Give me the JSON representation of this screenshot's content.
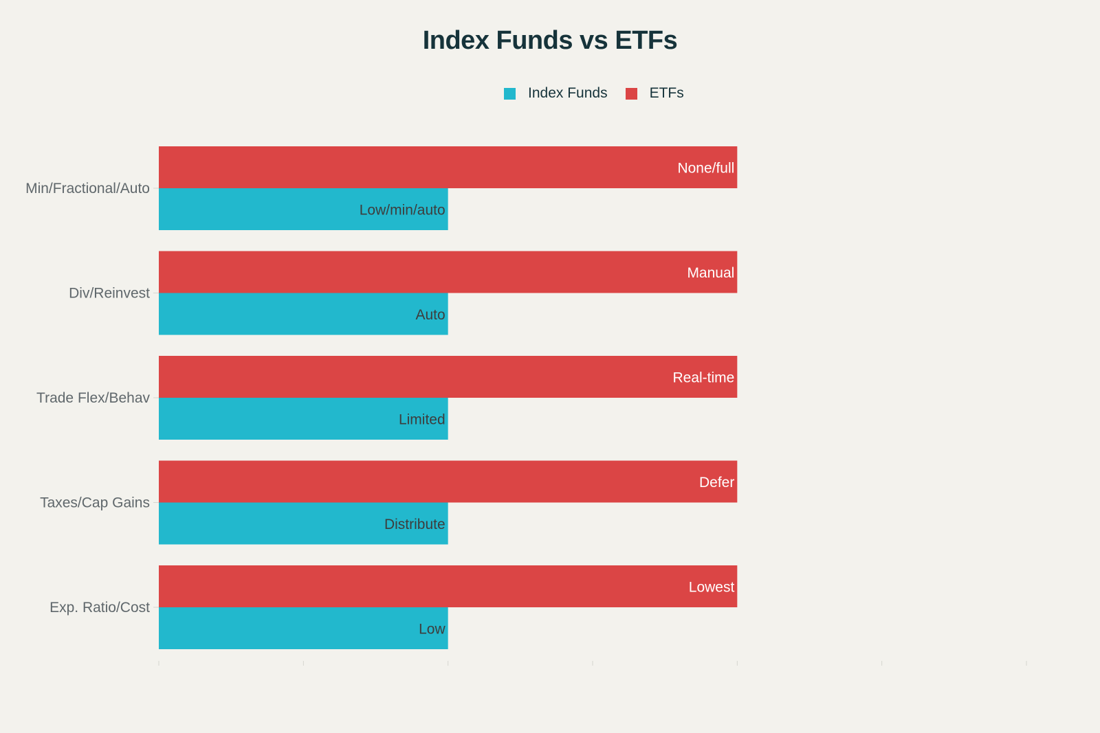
{
  "chart_data": {
    "type": "bar",
    "orientation": "horizontal",
    "title": "Index Funds vs ETFs",
    "categories": [
      "Min/Fractional/Auto",
      "Div/Reinvest",
      "Trade Flex/Behav",
      "Taxes/Cap Gains",
      "Exp. Ratio/Cost"
    ],
    "series": [
      {
        "name": "Index Funds",
        "color": "#22b8cd",
        "values": [
          2,
          2,
          2,
          2,
          2
        ],
        "labels": [
          "Low/min/auto",
          "Auto",
          "Limited",
          "Distribute",
          "Low"
        ],
        "label_color": "#3d3d3d"
      },
      {
        "name": "ETFs",
        "color": "#db4545",
        "values": [
          4,
          4,
          4,
          4,
          4
        ],
        "labels": [
          "None/full",
          "Manual",
          "Real-time",
          "Defer",
          "Lowest"
        ],
        "label_color": "#ffffff"
      }
    ],
    "xlim": [
      0,
      6
    ],
    "x_ticks": [
      0,
      1,
      2,
      3,
      4,
      5,
      6
    ],
    "x_tick_labels_visible": false,
    "grid": false,
    "legend": "top-center",
    "xlabel": "",
    "ylabel": ""
  }
}
